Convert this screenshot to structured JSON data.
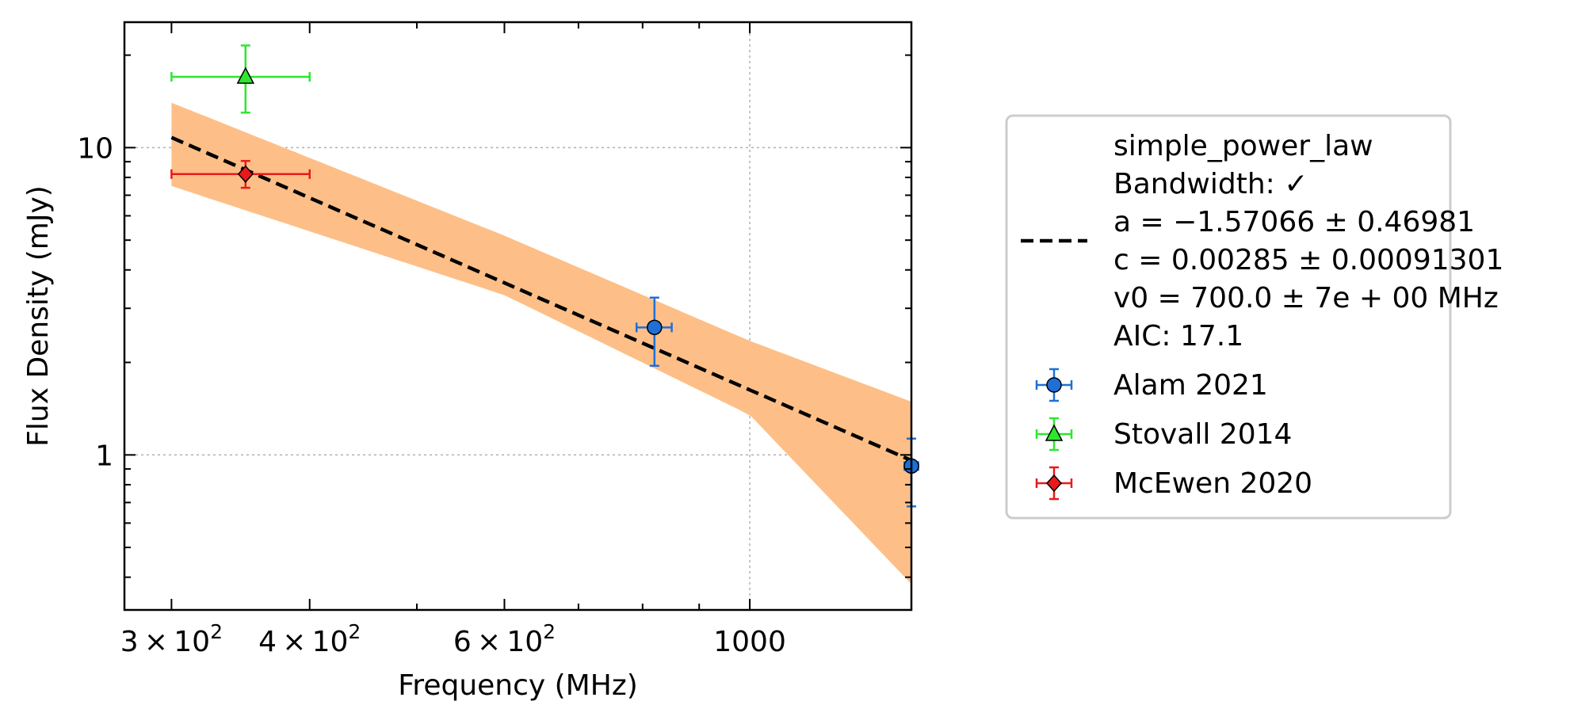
{
  "chart_data": {
    "type": "scatter",
    "title": "",
    "xlabel": "Frequency (MHz)",
    "ylabel": "Flux Density (mJy)",
    "xscale": "log",
    "yscale": "log",
    "xlim": [
      272,
      1400
    ],
    "ylim": [
      0.313,
      25.6
    ],
    "grid": true,
    "legend_position": "right, outside plot",
    "x_ticks": [
      {
        "value": 300,
        "base": "3",
        "exp": "2"
      },
      {
        "value": 400,
        "base": "4",
        "exp": "2"
      },
      {
        "value": 600,
        "base": "6",
        "exp": "2"
      },
      {
        "value": 1000,
        "label": "1000"
      }
    ],
    "y_ticks": [
      {
        "value": 1,
        "label": "1"
      },
      {
        "value": 10,
        "label": "10"
      }
    ],
    "fit": {
      "name": "simple_power_law",
      "legend_lines": [
        "simple_power_law",
        "Bandwidth: ✓",
        "a = −1.57066 ± 0.46981",
        "c = 0.00285 ± 0.00091301",
        "v0 = 700.0 ± 7e + 00 MHz",
        "AIC: 17.1"
      ],
      "a": -1.57066,
      "c": 0.00285,
      "v0": 700.0,
      "line_color": "#000000",
      "band_color": "#fdbf87",
      "x_range": [
        300,
        1400
      ],
      "band_x": [
        300,
        600,
        1000,
        1400
      ],
      "band_upper": [
        14.0,
        5.17,
        2.35,
        1.49
      ],
      "band_lower": [
        7.5,
        3.31,
        1.35,
        0.38
      ]
    },
    "series": [
      {
        "name": "Alam 2021",
        "marker": "circle",
        "color": "#1f6fd6",
        "points": [
          {
            "x": 820,
            "y": 2.6,
            "xerr": 30,
            "yerr_low": 0.65,
            "yerr_high": 0.65
          },
          {
            "x": 1400,
            "y": 0.92,
            "xerr": 20,
            "yerr_low": 0.24,
            "yerr_high": 0.21
          }
        ]
      },
      {
        "name": "Stovall 2014",
        "marker": "triangle",
        "color": "#2ee62e",
        "points": [
          {
            "x": 350,
            "y": 17.0,
            "xerr_low": 50,
            "xerr_high": 50,
            "yerr_low": 4.0,
            "yerr_high": 4.5
          }
        ]
      },
      {
        "name": "McEwen 2020",
        "marker": "diamond",
        "color": "#e81a1a",
        "points": [
          {
            "x": 350,
            "y": 8.2,
            "xerr_low": 50,
            "xerr_high": 50,
            "yerr_low": 0.8,
            "yerr_high": 0.85
          }
        ]
      }
    ]
  }
}
